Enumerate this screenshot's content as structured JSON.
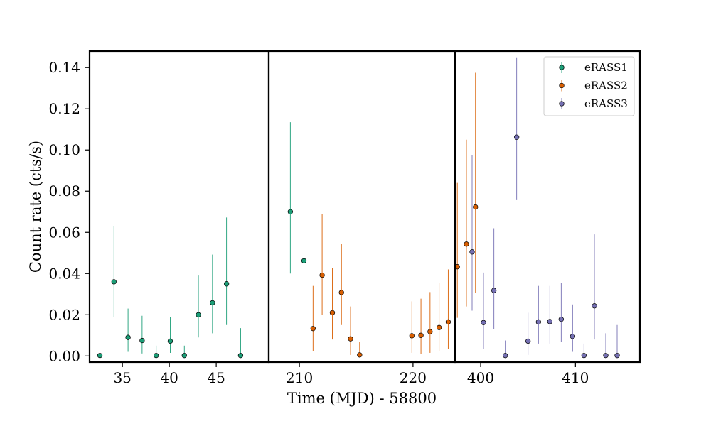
{
  "chart_data": {
    "type": "scatter",
    "xlabel": "Time (MJD) - 58800",
    "ylabel": "Count rate (cts/s)",
    "ylim": [
      -0.003,
      0.148
    ],
    "yticks": [
      0.0,
      0.02,
      0.04,
      0.06,
      0.08,
      0.1,
      0.12,
      0.14
    ],
    "ytick_labels": [
      "0.00",
      "0.02",
      "0.04",
      "0.06",
      "0.08",
      "0.10",
      "0.12",
      "0.14"
    ],
    "legend_position": "top-right",
    "panels": [
      {
        "xlim": [
          31.5,
          50.6
        ],
        "xticks": [
          35,
          40,
          45
        ],
        "xtick_labels": [
          "35",
          "40",
          "45"
        ]
      },
      {
        "xlim": [
          207.3,
          223.7
        ],
        "xticks": [
          210,
          220
        ],
        "xtick_labels": [
          "210",
          "220"
        ]
      },
      {
        "xlim": [
          397.3,
          416.8
        ],
        "xticks": [
          400,
          410
        ],
        "xtick_labels": [
          "400",
          "410"
        ]
      }
    ],
    "series": [
      {
        "name": "eRASS1",
        "color": "#1b9e77",
        "points": [
          {
            "x": 32.6,
            "y": 0.0002,
            "ylo": 0.0,
            "yhi": 0.0095,
            "panel": 0
          },
          {
            "x": 34.1,
            "y": 0.036,
            "ylo": 0.019,
            "yhi": 0.063,
            "panel": 0
          },
          {
            "x": 35.6,
            "y": 0.009,
            "ylo": 0.002,
            "yhi": 0.023,
            "panel": 0
          },
          {
            "x": 37.1,
            "y": 0.0075,
            "ylo": 0.0012,
            "yhi": 0.0195,
            "panel": 0
          },
          {
            "x": 38.6,
            "y": 0.0002,
            "ylo": 0.0,
            "yhi": 0.005,
            "panel": 0
          },
          {
            "x": 40.1,
            "y": 0.0072,
            "ylo": 0.0015,
            "yhi": 0.019,
            "panel": 0
          },
          {
            "x": 41.6,
            "y": 0.0002,
            "ylo": 0.0,
            "yhi": 0.005,
            "panel": 0
          },
          {
            "x": 43.1,
            "y": 0.02,
            "ylo": 0.009,
            "yhi": 0.039,
            "panel": 0
          },
          {
            "x": 44.6,
            "y": 0.0258,
            "ylo": 0.011,
            "yhi": 0.0492,
            "panel": 0
          },
          {
            "x": 46.1,
            "y": 0.035,
            "ylo": 0.015,
            "yhi": 0.0672,
            "panel": 0
          },
          {
            "x": 47.6,
            "y": 0.0002,
            "ylo": 0.0,
            "yhi": 0.0135,
            "panel": 0
          },
          {
            "x": 209.2,
            "y": 0.07,
            "ylo": 0.04,
            "yhi": 0.1135,
            "panel": 1
          },
          {
            "x": 210.4,
            "y": 0.0462,
            "ylo": 0.0205,
            "yhi": 0.089,
            "panel": 1
          }
        ]
      },
      {
        "name": "eRASS2",
        "color": "#d95f02",
        "points": [
          {
            "x": 211.2,
            "y": 0.0133,
            "ylo": 0.0025,
            "yhi": 0.034,
            "panel": 1
          },
          {
            "x": 212.0,
            "y": 0.0392,
            "ylo": 0.02,
            "yhi": 0.069,
            "panel": 1
          },
          {
            "x": 212.9,
            "y": 0.021,
            "ylo": 0.008,
            "yhi": 0.0425,
            "panel": 1
          },
          {
            "x": 213.7,
            "y": 0.0308,
            "ylo": 0.015,
            "yhi": 0.0545,
            "panel": 1
          },
          {
            "x": 214.5,
            "y": 0.0083,
            "ylo": 0.0005,
            "yhi": 0.024,
            "panel": 1
          },
          {
            "x": 215.3,
            "y": 0.0005,
            "ylo": 0.0,
            "yhi": 0.007,
            "panel": 1
          },
          {
            "x": 219.9,
            "y": 0.0098,
            "ylo": 0.0015,
            "yhi": 0.0265,
            "panel": 1
          },
          {
            "x": 220.7,
            "y": 0.01,
            "ylo": 0.001,
            "yhi": 0.0278,
            "panel": 1
          },
          {
            "x": 221.5,
            "y": 0.0118,
            "ylo": 0.0015,
            "yhi": 0.031,
            "panel": 1
          },
          {
            "x": 222.3,
            "y": 0.0138,
            "ylo": 0.0025,
            "yhi": 0.0355,
            "panel": 1
          },
          {
            "x": 223.1,
            "y": 0.0165,
            "ylo": 0.0035,
            "yhi": 0.042,
            "panel": 1
          },
          {
            "x": 223.9,
            "y": 0.0433,
            "ylo": 0.0185,
            "yhi": 0.084,
            "panel": 1
          },
          {
            "x": 224.7,
            "y": 0.0543,
            "ylo": 0.024,
            "yhi": 0.105,
            "panel": 1
          },
          {
            "x": 225.5,
            "y": 0.0723,
            "ylo": 0.0305,
            "yhi": 0.1375,
            "panel": 1
          }
        ]
      },
      {
        "name": "eRASS3",
        "color": "#7570b3",
        "points": [
          {
            "x": 399.1,
            "y": 0.0505,
            "ylo": 0.022,
            "yhi": 0.0975,
            "panel": 2
          },
          {
            "x": 400.3,
            "y": 0.0162,
            "ylo": 0.0035,
            "yhi": 0.0405,
            "panel": 2
          },
          {
            "x": 401.4,
            "y": 0.0318,
            "ylo": 0.013,
            "yhi": 0.062,
            "panel": 2
          },
          {
            "x": 402.6,
            "y": 0.0002,
            "ylo": 0.0,
            "yhi": 0.0075,
            "panel": 2
          },
          {
            "x": 403.8,
            "y": 0.1062,
            "ylo": 0.076,
            "yhi": 0.145,
            "panel": 2
          },
          {
            "x": 405.0,
            "y": 0.0072,
            "ylo": 0.0005,
            "yhi": 0.021,
            "panel": 2
          },
          {
            "x": 406.1,
            "y": 0.0165,
            "ylo": 0.006,
            "yhi": 0.034,
            "panel": 2
          },
          {
            "x": 407.3,
            "y": 0.0167,
            "ylo": 0.006,
            "yhi": 0.034,
            "panel": 2
          },
          {
            "x": 408.5,
            "y": 0.0178,
            "ylo": 0.007,
            "yhi": 0.0355,
            "panel": 2
          },
          {
            "x": 409.7,
            "y": 0.0095,
            "ylo": 0.002,
            "yhi": 0.025,
            "panel": 2
          },
          {
            "x": 410.9,
            "y": 0.0002,
            "ylo": 0.0,
            "yhi": 0.006,
            "panel": 2
          },
          {
            "x": 412.0,
            "y": 0.0243,
            "ylo": 0.008,
            "yhi": 0.059,
            "panel": 2
          },
          {
            "x": 413.2,
            "y": 0.0002,
            "ylo": 0.0,
            "yhi": 0.011,
            "panel": 2
          },
          {
            "x": 414.4,
            "y": 0.0002,
            "ylo": 0.0,
            "yhi": 0.015,
            "panel": 2
          }
        ]
      }
    ]
  }
}
